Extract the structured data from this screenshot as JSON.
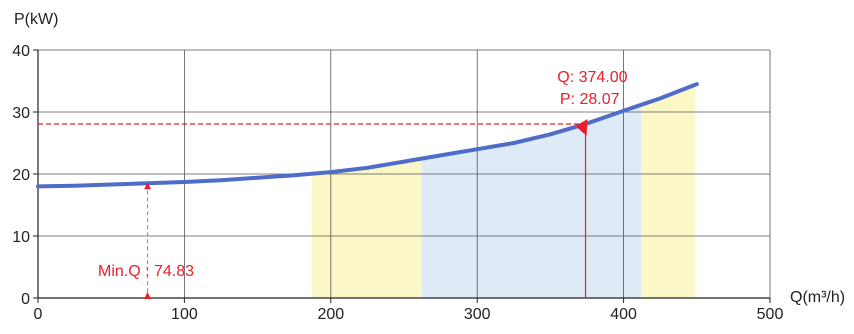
{
  "chart_data": {
    "type": "line",
    "ylabel": "P(kW)",
    "xlabel": "Q(m³/h)",
    "xlim": [
      0,
      500
    ],
    "ylim": [
      0,
      40
    ],
    "x_ticks": [
      0,
      100,
      200,
      300,
      400,
      500
    ],
    "y_ticks": [
      0,
      10,
      20,
      30,
      40
    ],
    "x_tick_labels": [
      "0",
      "100",
      "200",
      "300",
      "400",
      "500"
    ],
    "y_tick_labels": [
      "0",
      "10",
      "20",
      "30",
      "40"
    ],
    "grid": true,
    "series": [
      {
        "color": "#4f6cc9",
        "x": [
          0,
          25,
          50,
          75,
          100,
          125,
          150,
          175,
          200,
          225,
          250,
          275,
          300,
          325,
          350,
          374,
          400,
          425,
          450
        ],
        "y": [
          18.0,
          18.1,
          18.3,
          18.5,
          18.7,
          19.0,
          19.4,
          19.8,
          20.3,
          21.0,
          22.0,
          23.0,
          24.0,
          25.0,
          26.4,
          28.07,
          30.2,
          32.2,
          34.5
        ]
      }
    ],
    "regions": [
      {
        "x_start": 187,
        "x_end": 262,
        "color": "#fbf7c6"
      },
      {
        "x_start": 262,
        "x_end": 412,
        "color": "#dfeaf7"
      },
      {
        "x_start": 412,
        "x_end": 449,
        "color": "#fbf7c6"
      }
    ],
    "annotations": {
      "operating_point": {
        "x": 374,
        "y": 28.07,
        "q_label": "Q: 374.00",
        "p_label": "P: 28.07",
        "color": "#e8202a"
      },
      "min_flow": {
        "x": 74.83,
        "y": 18.5,
        "label": "Min.Q : 74.83",
        "color": "#e8202a"
      }
    }
  }
}
